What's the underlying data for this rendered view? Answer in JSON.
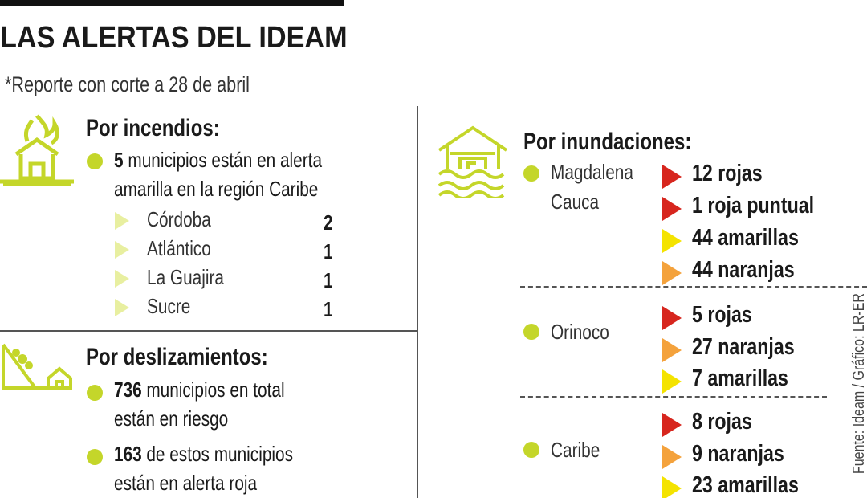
{
  "header": {
    "title": "LAS ALERTAS DEL IDEAM",
    "note": "*Reporte con corte a 28 de abril"
  },
  "fires": {
    "heading": "Por incendios:",
    "count": "5",
    "line_1": "municipios están en alerta",
    "line_2": "amarilla en la región Caribe",
    "items": [
      {
        "name": "Córdoba",
        "value": "2"
      },
      {
        "name": "Atlántico",
        "value": "1"
      },
      {
        "name": "La Guajira",
        "value": "1"
      },
      {
        "name": "Sucre",
        "value": "1"
      }
    ]
  },
  "landslides": {
    "heading": "Por deslizamientos:",
    "bullets": [
      {
        "count": "736",
        "line_1": "municipios en total",
        "line_2": "están en riesgo"
      },
      {
        "count": "163",
        "line_1": "de estos municipios",
        "line_2": "están en alerta roja"
      }
    ]
  },
  "floods": {
    "heading": "Por inundaciones:",
    "regions": [
      {
        "name": [
          "Magdalena",
          "Cauca"
        ],
        "alerts": [
          {
            "text": "12 rojas",
            "color": "#d7261e"
          },
          {
            "text": "1 roja puntual",
            "color": "#d7261e"
          },
          {
            "text": "44 amarillas",
            "color": "#f4e300"
          },
          {
            "text": "44 naranjas",
            "color": "#f4a23c"
          }
        ]
      },
      {
        "name": [
          "Orinoco"
        ],
        "alerts": [
          {
            "text": "5 rojas",
            "color": "#d7261e"
          },
          {
            "text": "27 naranjas",
            "color": "#f4a23c"
          },
          {
            "text": "7 amarillas",
            "color": "#f4e300"
          }
        ]
      },
      {
        "name": [
          "Caribe"
        ],
        "alerts": [
          {
            "text": "8 rojas",
            "color": "#d7261e"
          },
          {
            "text": "9 naranjas",
            "color": "#f4a23c"
          },
          {
            "text": "23 amarillas",
            "color": "#f4e300"
          }
        ]
      }
    ]
  },
  "source": "Fuente: Ideam / Gráfico: LR-ER"
}
